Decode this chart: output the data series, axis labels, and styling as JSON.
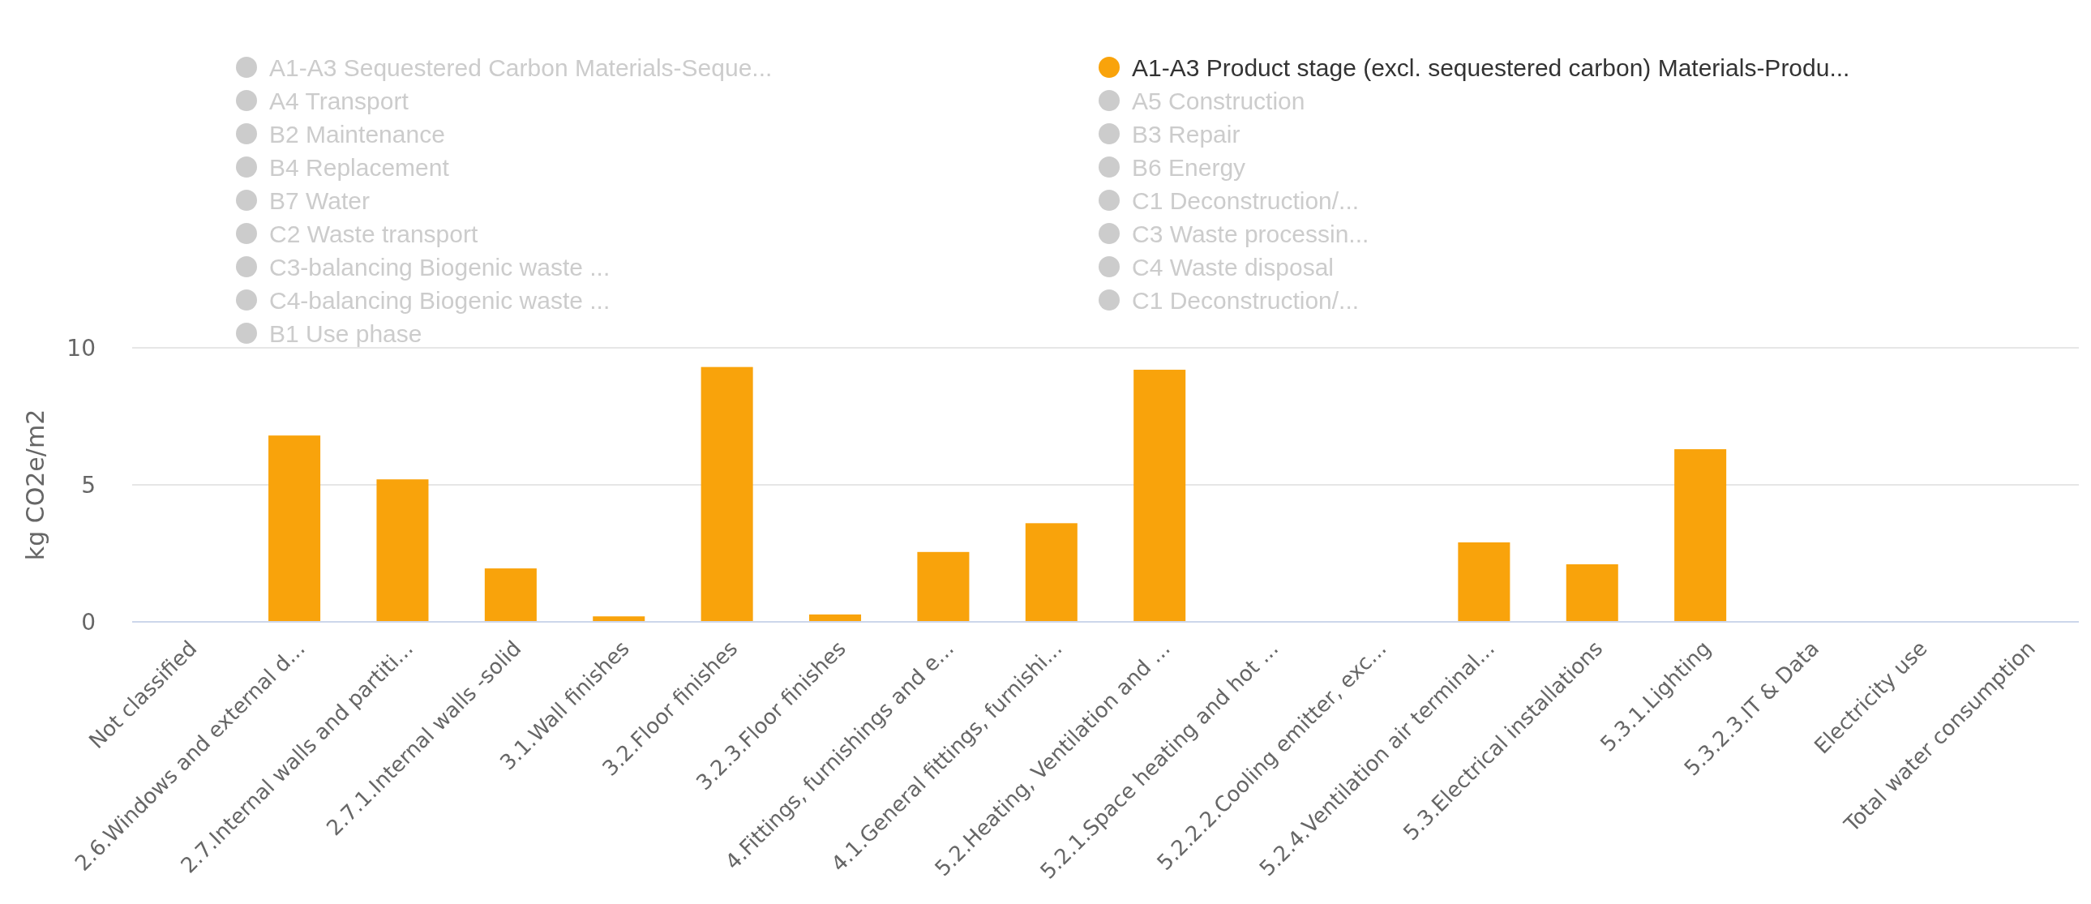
{
  "chart_data": {
    "type": "bar",
    "ylabel": "kg CO2e/m2",
    "categories": [
      "Not classified",
      "2.6.Windows and external d...",
      "2.7.Internal walls and partiti...",
      "2.7.1.Internal walls -solid",
      "3.1.Wall finishes",
      "3.2.Floor finishes",
      "3.2.3.Floor finishes",
      "4.Fittings, furnishings and e...",
      "4.1.General fittings, furnishi...",
      "5.2.Heating, Ventilation and ...",
      "5.2.1.Space heating and hot ...",
      "5.2.2.2.Cooling emitter, exc...",
      "5.2.4.Ventilation air terminal...",
      "5.3.Electrical installations",
      "5.3.1.Lighting",
      "5.3.2.3.IT & Data",
      "Electricity use",
      "Total water consumption"
    ],
    "series": [
      {
        "name": "A1-A3 Sequestered Carbon Materials-Seque...",
        "color": "#cccccc",
        "values": [
          null,
          null,
          null,
          null,
          null,
          null,
          null,
          null,
          null,
          null,
          null,
          null,
          null,
          null,
          null,
          null,
          null,
          null
        ]
      },
      {
        "name": "A1-A3 Product stage (excl. sequestered carbon) Materials-Produ...",
        "color": "#f9a30b",
        "values": [
          0,
          6.8,
          5.2,
          1.95,
          0.2,
          9.3,
          0.27,
          2.55,
          3.6,
          9.2,
          0,
          0,
          2.9,
          2.1,
          6.3,
          0,
          0,
          0
        ]
      },
      {
        "name": "A4 Transport",
        "color": "#cccccc",
        "values": [
          null,
          null,
          null,
          null,
          null,
          null,
          null,
          null,
          null,
          null,
          null,
          null,
          null,
          null,
          null,
          null,
          null,
          null
        ]
      },
      {
        "name": "A5 Construction",
        "color": "#cccccc",
        "values": [
          null,
          null,
          null,
          null,
          null,
          null,
          null,
          null,
          null,
          null,
          null,
          null,
          null,
          null,
          null,
          null,
          null,
          null
        ]
      },
      {
        "name": "B2 Maintenance",
        "color": "#cccccc",
        "values": [
          null,
          null,
          null,
          null,
          null,
          null,
          null,
          null,
          null,
          null,
          null,
          null,
          null,
          null,
          null,
          null,
          null,
          null
        ]
      },
      {
        "name": "B3 Repair",
        "color": "#cccccc",
        "values": [
          null,
          null,
          null,
          null,
          null,
          null,
          null,
          null,
          null,
          null,
          null,
          null,
          null,
          null,
          null,
          null,
          null,
          null
        ]
      },
      {
        "name": "B4 Replacement",
        "color": "#cccccc",
        "values": [
          null,
          null,
          null,
          null,
          null,
          null,
          null,
          null,
          null,
          null,
          null,
          null,
          null,
          null,
          null,
          null,
          null,
          null
        ]
      },
      {
        "name": "B6 Energy",
        "color": "#cccccc",
        "values": [
          null,
          null,
          null,
          null,
          null,
          null,
          null,
          null,
          null,
          null,
          null,
          null,
          null,
          null,
          null,
          null,
          null,
          null
        ]
      },
      {
        "name": "B7 Water",
        "color": "#cccccc",
        "values": [
          null,
          null,
          null,
          null,
          null,
          null,
          null,
          null,
          null,
          null,
          null,
          null,
          null,
          null,
          null,
          null,
          null,
          null
        ]
      },
      {
        "name": "C1 Deconstruction/...",
        "color": "#cccccc",
        "values": [
          null,
          null,
          null,
          null,
          null,
          null,
          null,
          null,
          null,
          null,
          null,
          null,
          null,
          null,
          null,
          null,
          null,
          null
        ]
      },
      {
        "name": "C2 Waste transport",
        "color": "#cccccc",
        "values": [
          null,
          null,
          null,
          null,
          null,
          null,
          null,
          null,
          null,
          null,
          null,
          null,
          null,
          null,
          null,
          null,
          null,
          null
        ]
      },
      {
        "name": "C3 Waste processin...",
        "color": "#cccccc",
        "values": [
          null,
          null,
          null,
          null,
          null,
          null,
          null,
          null,
          null,
          null,
          null,
          null,
          null,
          null,
          null,
          null,
          null,
          null
        ]
      },
      {
        "name": "C3-balancing Biogenic waste ...",
        "color": "#cccccc",
        "values": [
          null,
          null,
          null,
          null,
          null,
          null,
          null,
          null,
          null,
          null,
          null,
          null,
          null,
          null,
          null,
          null,
          null,
          null
        ]
      },
      {
        "name": "C4 Waste disposal",
        "color": "#cccccc",
        "values": [
          null,
          null,
          null,
          null,
          null,
          null,
          null,
          null,
          null,
          null,
          null,
          null,
          null,
          null,
          null,
          null,
          null,
          null
        ]
      },
      {
        "name": "C4-balancing Biogenic waste ...",
        "color": "#cccccc",
        "values": [
          null,
          null,
          null,
          null,
          null,
          null,
          null,
          null,
          null,
          null,
          null,
          null,
          null,
          null,
          null,
          null,
          null,
          null
        ]
      },
      {
        "name": "C1 Deconstruction/...",
        "color": "#cccccc",
        "values": [
          null,
          null,
          null,
          null,
          null,
          null,
          null,
          null,
          null,
          null,
          null,
          null,
          null,
          null,
          null,
          null,
          null,
          null
        ]
      },
      {
        "name": "B1 Use phase",
        "color": "#cccccc",
        "values": [
          null,
          null,
          null,
          null,
          null,
          null,
          null,
          null,
          null,
          null,
          null,
          null,
          null,
          null,
          null,
          null,
          null,
          null
        ]
      }
    ],
    "ylim": [
      0,
      10
    ],
    "yticks": [
      0,
      5,
      10
    ],
    "grid": "y",
    "legend": "top"
  }
}
